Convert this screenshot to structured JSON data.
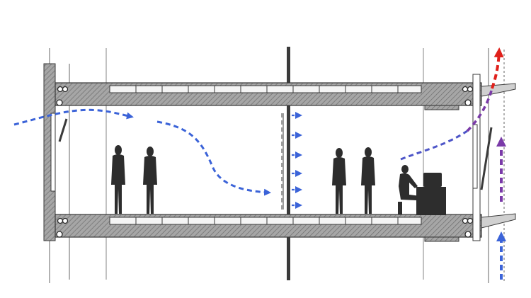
{
  "diagram": {
    "kind": "building-section-airflow",
    "labels": [],
    "colors": {
      "background": "#ffffff",
      "structure_fill": "#a9a9a9",
      "structure_stroke": "#3a3a3a",
      "figure_fill": "#2d2d2d",
      "airflow_fresh": "#3b63d8",
      "airflow_mixed": "#7a3aa8",
      "airflow_exhaust": "#e0201b",
      "thin_line": "#555555"
    },
    "elements": {
      "standing_people": 4,
      "seated_workers": 1,
      "diffuser_arrows": 6,
      "slab_bolts": 8
    },
    "icons": [
      "arrow-icon"
    ]
  }
}
